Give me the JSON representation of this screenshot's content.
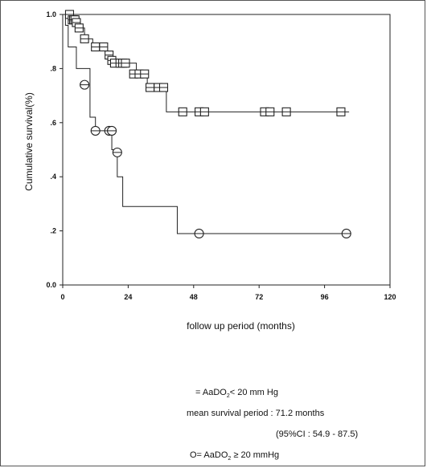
{
  "chart_data": {
    "type": "line",
    "subtype": "kaplan-meier",
    "xlabel": "follow up period (months)",
    "ylabel": "Cumulative survival(%)",
    "xlim": [
      0,
      120
    ],
    "ylim": [
      0.0,
      1.0
    ],
    "x_ticks": [
      0,
      24,
      48,
      72,
      96,
      120
    ],
    "x_tick_labels": [
      "0",
      "24",
      "48",
      "72",
      "96",
      "120"
    ],
    "y_ticks": [
      0.0,
      0.2,
      0.4,
      0.6,
      0.8,
      1.0
    ],
    "y_tick_labels": [
      "0.0",
      ".2",
      ".4",
      ".6",
      ".8",
      "1.0"
    ],
    "grid": false,
    "series": [
      {
        "marker": "square",
        "steps": [
          [
            0,
            1.0
          ],
          [
            3,
            0.98
          ],
          [
            4,
            0.97
          ],
          [
            6,
            0.95
          ],
          [
            8,
            0.91
          ],
          [
            11,
            0.88
          ],
          [
            16,
            0.85
          ],
          [
            17,
            0.83
          ],
          [
            18,
            0.82
          ],
          [
            27,
            0.78
          ],
          [
            31,
            0.73
          ],
          [
            38,
            0.64
          ],
          [
            105,
            0.64
          ]
        ],
        "censored": [
          [
            2.5,
            1.0
          ],
          [
            3.5,
            0.98
          ],
          [
            4,
            0.98
          ],
          [
            4.5,
            0.98
          ],
          [
            5,
            0.97
          ],
          [
            6,
            0.95
          ],
          [
            8,
            0.91
          ],
          [
            12,
            0.88
          ],
          [
            15,
            0.88
          ],
          [
            17,
            0.85
          ],
          [
            18,
            0.83
          ],
          [
            19,
            0.82
          ],
          [
            21,
            0.82
          ],
          [
            22,
            0.82
          ],
          [
            23,
            0.82
          ],
          [
            26,
            0.78
          ],
          [
            28,
            0.78
          ],
          [
            30,
            0.78
          ],
          [
            32,
            0.73
          ],
          [
            35,
            0.73
          ],
          [
            37,
            0.73
          ],
          [
            44,
            0.64
          ],
          [
            50,
            0.64
          ],
          [
            52,
            0.64
          ],
          [
            74,
            0.64
          ],
          [
            76,
            0.64
          ],
          [
            82,
            0.64
          ],
          [
            102,
            0.64
          ]
        ]
      },
      {
        "marker": "circle",
        "steps": [
          [
            0,
            1.0
          ],
          [
            1,
            0.96
          ],
          [
            2,
            0.88
          ],
          [
            5,
            0.8
          ],
          [
            10,
            0.62
          ],
          [
            12,
            0.57
          ],
          [
            18,
            0.5
          ],
          [
            20,
            0.4
          ],
          [
            22,
            0.29
          ],
          [
            42,
            0.19
          ],
          [
            104,
            0.19
          ]
        ],
        "censored": [
          [
            8,
            0.74
          ],
          [
            12,
            0.57
          ],
          [
            17,
            0.57
          ],
          [
            18,
            0.57
          ],
          [
            20,
            0.49
          ],
          [
            50,
            0.19
          ],
          [
            104,
            0.19
          ]
        ]
      }
    ]
  },
  "legend": {
    "line1_prefix": "= AaDO",
    "line1_sub": "2",
    "line1_suffix": "< 20 mm Hg",
    "line2": "mean survival period : 71.2 months",
    "line3": "(95%CI : 54.9 - 87.5)",
    "line4_prefix": "O= AaDO",
    "line4_sub": "2",
    "line4_suffix": " ≥ 20 mmHg"
  }
}
